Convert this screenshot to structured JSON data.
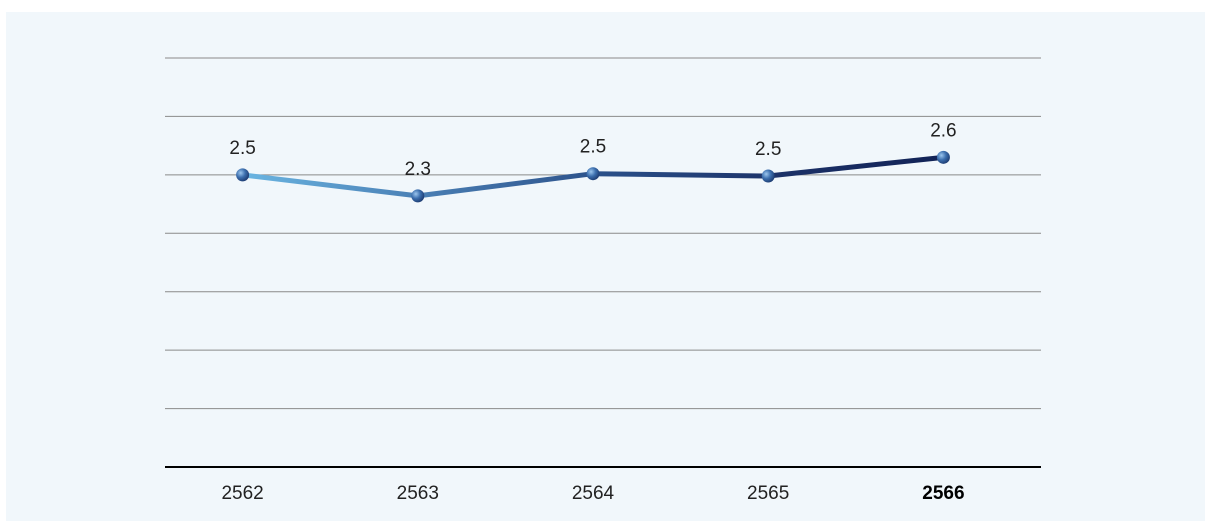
{
  "chart_data": {
    "type": "line",
    "title": "",
    "xlabel": "",
    "ylabel": "",
    "categories": [
      "2562",
      "2563",
      "2564",
      "2565",
      "2566"
    ],
    "highlight_category": "2566",
    "series": [
      {
        "values": [
          2.5,
          2.3,
          2.5,
          2.5,
          2.6
        ],
        "labels": [
          "2.5",
          "2.3",
          "2.5",
          "2.5",
          "2.6"
        ],
        "plot_values": [
          2.5,
          2.32,
          2.51,
          2.49,
          2.65
        ]
      }
    ],
    "ylim": [
      0,
      3.5
    ],
    "gridlines": [
      0.5,
      1.0,
      1.5,
      2.0,
      2.5,
      3.0,
      3.5
    ],
    "grid": true,
    "show_y_axis_labels": false,
    "legend": "none",
    "colors": {
      "background": "#f1f7fb",
      "gridline": "#8a8a8a",
      "baseline": "#000000",
      "line_gradient": [
        "#6cb8e4",
        "#4a7fb4",
        "#2a4f88",
        "#1b3066",
        "#0f1f52"
      ],
      "marker": "#2f5f9c"
    }
  }
}
